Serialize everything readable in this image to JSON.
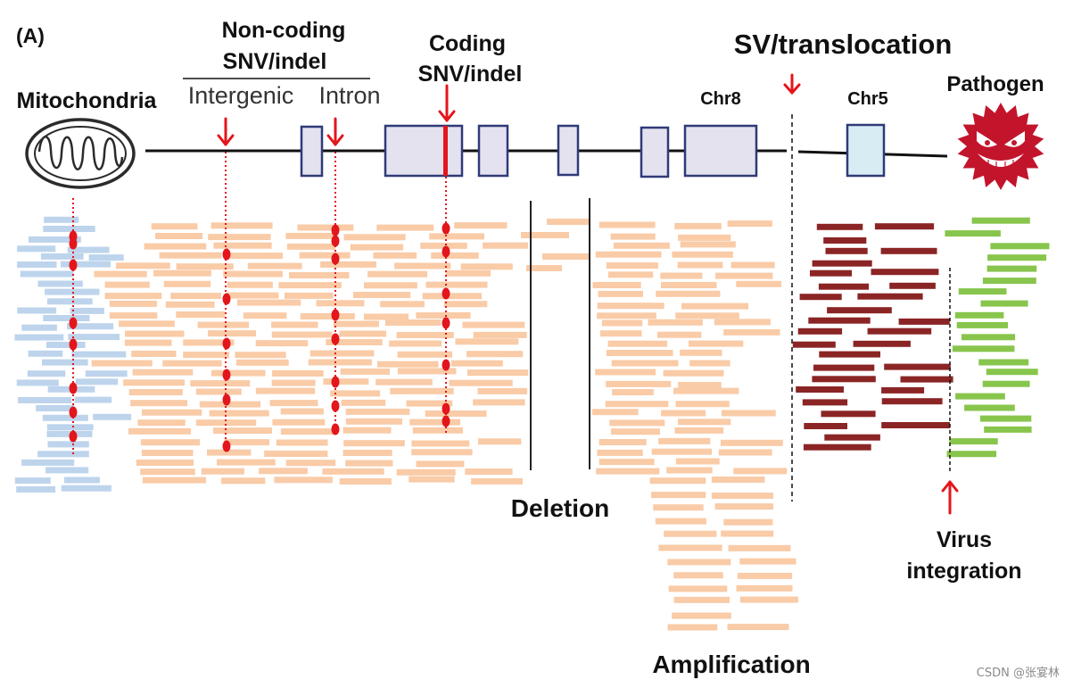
{
  "panel_label": "(A)",
  "labels": {
    "noncoding_title": "Non-coding",
    "noncoding_subtitle": "SNV/indel",
    "intergenic": "Intergenic",
    "intron": "Intron",
    "coding_title": "Coding",
    "coding_subtitle": "SNV/indel",
    "sv_translocation": "SV/translocation",
    "mitochondria": "Mitochondria",
    "chr8": "Chr8",
    "chr5": "Chr5",
    "pathogen": "Pathogen",
    "deletion": "Deletion",
    "amplification": "Amplification",
    "virus_line1": "Virus",
    "virus_line2": "integration"
  },
  "watermark": "CSDN @张宴林",
  "icons": {
    "mitochondria": "mitochondria-icon",
    "pathogen": "virus-face-icon"
  },
  "colors": {
    "mitochondrial_reads": "#bdd4ec",
    "nuclear_reads": "#f9cba7",
    "chr5_reads": "#8b2525",
    "pathogen_reads": "#88c54c",
    "variant_marker": "#e3161b",
    "exon_fill": "#e4e2ef",
    "exon_stroke": "#2f3a78",
    "chr5_exon_fill": "#d8ecf4",
    "pathogen": "#c2152c",
    "backbone": "#111111"
  }
}
